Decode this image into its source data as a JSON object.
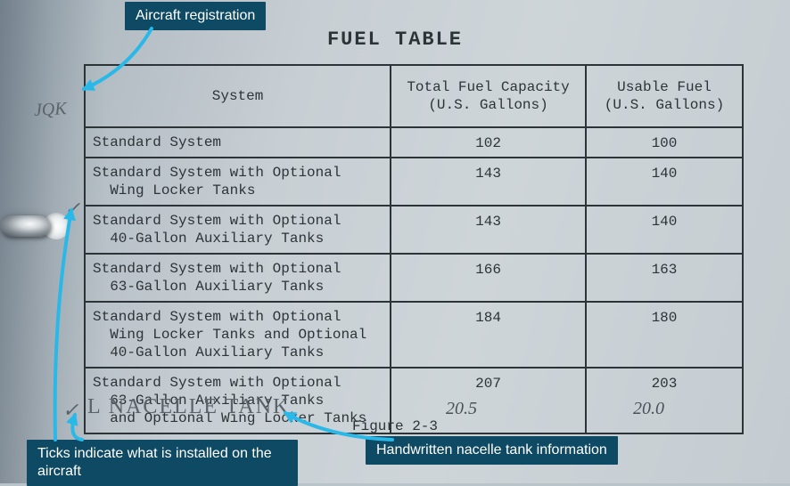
{
  "title": "FUEL TABLE",
  "figure_label": "Figure 2-3",
  "colors": {
    "table_border": "#2d3438",
    "text": "#2d3438",
    "callout_bg": "#0e4a63",
    "callout_text": "#ffffff",
    "arrow": "#29b8e8",
    "handwriting": "#5b636a",
    "page_bg_light": "#ced5d9",
    "page_bg_dark": "#9aa7b1"
  },
  "table": {
    "columns": [
      "System",
      "Total Fuel Capacity\n(U.S. Gallons)",
      "Usable Fuel\n(U.S. Gallons)"
    ],
    "rows": [
      {
        "system": "Standard System",
        "capacity": "102",
        "usable": "100"
      },
      {
        "system": "Standard System with Optional\n  Wing Locker Tanks",
        "capacity": "143",
        "usable": "140"
      },
      {
        "system": "Standard System with Optional\n  40-Gallon Auxiliary Tanks",
        "capacity": "143",
        "usable": "140"
      },
      {
        "system": "Standard System with Optional\n  63-Gallon Auxiliary Tanks",
        "capacity": "166",
        "usable": "163"
      },
      {
        "system": "Standard System with Optional\n  Wing Locker Tanks and Optional\n  40-Gallon Auxiliary Tanks",
        "capacity": "184",
        "usable": "180"
      },
      {
        "system": "Standard System with Optional\n  63-Gallon Auxiliary Tanks\n  and Optional Wing Locker Tanks",
        "capacity": "207",
        "usable": "203"
      }
    ]
  },
  "handwritten": {
    "registration": "JQK",
    "tick1": "✓",
    "tick2": "✓",
    "nacelle_label": "L NACELLE  TANK",
    "nacelle_capacity": "20.5",
    "nacelle_usable": "20.0"
  },
  "callouts": {
    "registration": "Aircraft registration",
    "ticks": "Ticks indicate what is installed on the aircraft",
    "nacelle": "Handwritten nacelle tank information"
  },
  "arrows": {
    "color": "#29b8e8",
    "stroke_width": 4,
    "head_size": 14,
    "paths": [
      {
        "from": [
          170,
          32
        ],
        "to": [
          94,
          100
        ]
      },
      {
        "from": [
          62,
          494
        ],
        "to": [
          80,
          236
        ]
      },
      {
        "from": [
          92,
          494
        ],
        "to": [
          84,
          466
        ]
      },
      {
        "from": [
          440,
          494
        ],
        "to": [
          320,
          464
        ]
      }
    ]
  }
}
